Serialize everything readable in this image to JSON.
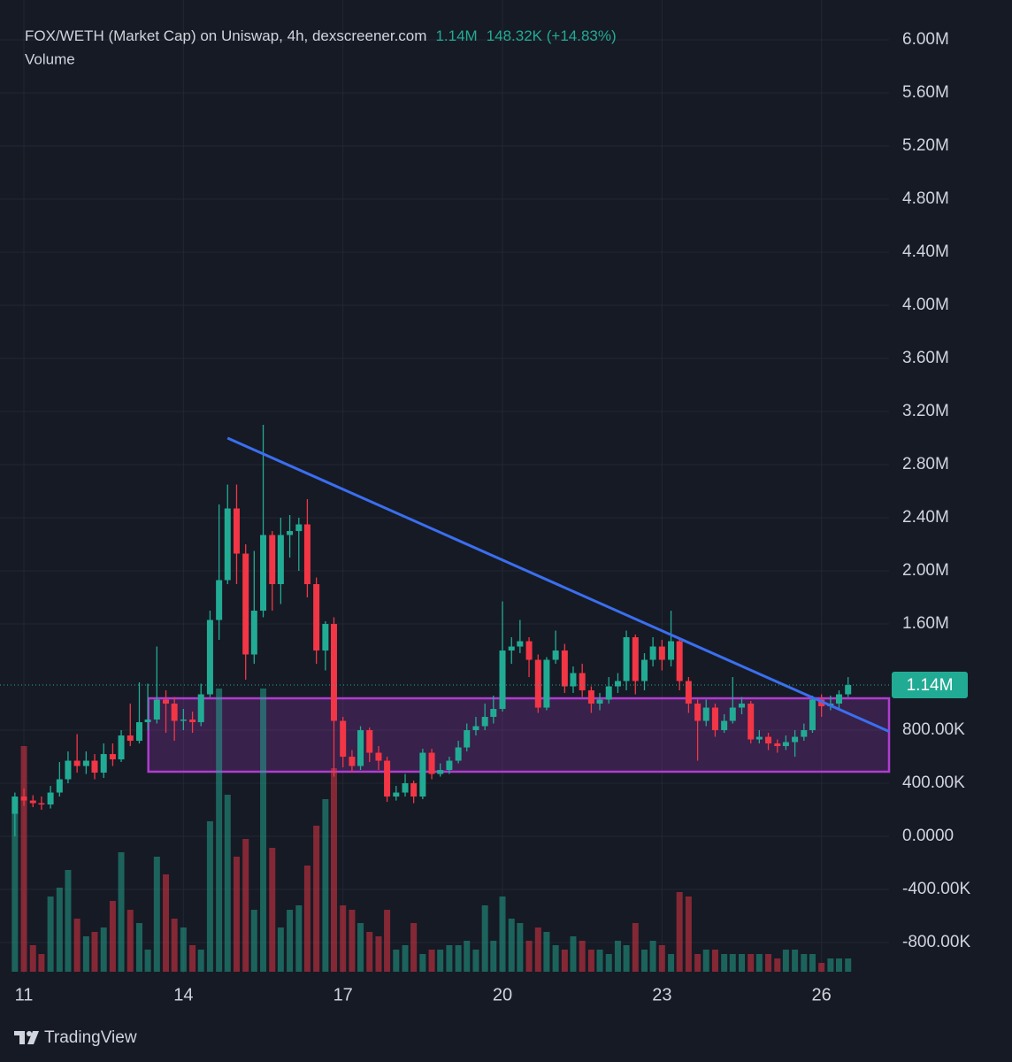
{
  "chart_data": {
    "type": "candlestick",
    "title": "FOX/WETH (Market Cap) on Uniswap, 4h, dexscreener.com",
    "header_value": "1.14M",
    "header_change": "148.32K (+14.83%)",
    "volume_label": "Volume",
    "x": [
      10.83,
      11,
      11.17,
      11.33,
      11.5,
      11.67,
      11.83,
      12,
      12.17,
      12.33,
      12.5,
      12.67,
      12.83,
      13,
      13.17,
      13.33,
      13.5,
      13.67,
      13.83,
      14,
      14.17,
      14.33,
      14.5,
      14.67,
      14.83,
      15,
      15.17,
      15.33,
      15.5,
      15.67,
      15.83,
      16,
      16.17,
      16.33,
      16.5,
      16.67,
      16.83,
      17,
      17.17,
      17.33,
      17.5,
      17.67,
      17.83,
      18,
      18.17,
      18.33,
      18.5,
      18.67,
      18.83,
      19,
      19.17,
      19.33,
      19.5,
      19.67,
      19.83,
      20,
      20.17,
      20.33,
      20.5,
      20.67,
      20.83,
      21,
      21.17,
      21.33,
      21.5,
      21.67,
      21.83,
      22,
      22.17,
      22.33,
      22.5,
      22.67,
      22.83,
      23,
      23.17,
      23.33,
      23.5,
      23.67,
      23.83,
      24,
      24.17,
      24.33,
      24.5,
      24.67,
      24.83,
      25,
      25.17,
      25.33,
      25.5,
      25.67,
      25.83,
      26,
      26.17,
      26.33,
      26.5
    ],
    "open": [
      170000,
      300000,
      270000,
      250000,
      240000,
      330000,
      430000,
      570000,
      530000,
      570000,
      480000,
      620000,
      580000,
      760000,
      720000,
      860000,
      880000,
      1030000,
      1000000,
      870000,
      880000,
      860000,
      1070000,
      1630000,
      1930000,
      2470000,
      2130000,
      1370000,
      1700000,
      2270000,
      1900000,
      2270000,
      2300000,
      2350000,
      1900000,
      1400000,
      1600000,
      870000,
      600000,
      530000,
      800000,
      630000,
      570000,
      300000,
      330000,
      400000,
      300000,
      630000,
      470000,
      500000,
      570000,
      670000,
      800000,
      830000,
      900000,
      960000,
      1400000,
      1430000,
      1470000,
      1330000,
      970000,
      1330000,
      1400000,
      1130000,
      1230000,
      1100000,
      1000000,
      1030000,
      1130000,
      1170000,
      1500000,
      1170000,
      1330000,
      1430000,
      1330000,
      1470000,
      1170000,
      1000000,
      870000,
      970000,
      800000,
      870000,
      970000,
      1000000,
      730000,
      750000,
      700000,
      680000,
      710000,
      750000,
      800000,
      1030000,
      980000,
      1000000,
      1070000
    ],
    "high": [
      330000,
      360000,
      310000,
      300000,
      380000,
      560000,
      640000,
      770000,
      640000,
      620000,
      700000,
      700000,
      800000,
      1000000,
      1160000,
      1150000,
      1430000,
      1100000,
      1050000,
      960000,
      940000,
      1150000,
      1700000,
      2500000,
      2650000,
      2650000,
      2200000,
      2150000,
      3100000,
      2300000,
      2400000,
      2420000,
      2400000,
      2540000,
      1950000,
      1620000,
      1650000,
      900000,
      650000,
      830000,
      820000,
      680000,
      600000,
      380000,
      470000,
      420000,
      660000,
      660000,
      550000,
      600000,
      720000,
      850000,
      900000,
      1000000,
      1060000,
      1770000,
      1500000,
      1630000,
      1500000,
      1370000,
      1350000,
      1550000,
      1450000,
      1280000,
      1300000,
      1130000,
      1080000,
      1200000,
      1230000,
      1550000,
      1520000,
      1380000,
      1500000,
      1480000,
      1700000,
      1500000,
      1200000,
      1030000,
      1030000,
      1000000,
      920000,
      1200000,
      1050000,
      1020000,
      800000,
      780000,
      730000,
      760000,
      800000,
      850000,
      1060000,
      1070000,
      1060000,
      1100000,
      1200000
    ],
    "low": [
      0,
      230000,
      220000,
      200000,
      210000,
      300000,
      400000,
      480000,
      470000,
      430000,
      440000,
      530000,
      560000,
      680000,
      700000,
      800000,
      850000,
      780000,
      720000,
      800000,
      780000,
      830000,
      1050000,
      1480000,
      1900000,
      1900000,
      1180000,
      1300000,
      1650000,
      1700000,
      1750000,
      2100000,
      2000000,
      1800000,
      1300000,
      1250000,
      450000,
      520000,
      480000,
      500000,
      560000,
      500000,
      260000,
      270000,
      300000,
      250000,
      280000,
      430000,
      450000,
      470000,
      550000,
      640000,
      760000,
      800000,
      850000,
      940000,
      1300000,
      1380000,
      1200000,
      930000,
      950000,
      1300000,
      1080000,
      1080000,
      1050000,
      930000,
      950000,
      1000000,
      1080000,
      1100000,
      1070000,
      1100000,
      1280000,
      1250000,
      1280000,
      1100000,
      930000,
      570000,
      830000,
      750000,
      780000,
      850000,
      920000,
      700000,
      700000,
      650000,
      630000,
      650000,
      600000,
      720000,
      780000,
      900000,
      950000,
      960000,
      1050000
    ],
    "close": [
      300000,
      270000,
      250000,
      240000,
      330000,
      430000,
      570000,
      530000,
      570000,
      480000,
      620000,
      580000,
      760000,
      720000,
      860000,
      880000,
      1030000,
      1000000,
      870000,
      880000,
      860000,
      1070000,
      1630000,
      1930000,
      2470000,
      2130000,
      1370000,
      1700000,
      2270000,
      1900000,
      2270000,
      2300000,
      2350000,
      1900000,
      1400000,
      1600000,
      870000,
      600000,
      530000,
      800000,
      630000,
      570000,
      300000,
      330000,
      400000,
      300000,
      630000,
      470000,
      500000,
      570000,
      670000,
      800000,
      830000,
      900000,
      960000,
      1400000,
      1430000,
      1470000,
      1330000,
      970000,
      1330000,
      1400000,
      1130000,
      1230000,
      1100000,
      1000000,
      1030000,
      1130000,
      1170000,
      1500000,
      1170000,
      1330000,
      1430000,
      1330000,
      1470000,
      1170000,
      1000000,
      870000,
      970000,
      800000,
      870000,
      970000,
      1000000,
      730000,
      750000,
      700000,
      680000,
      710000,
      750000,
      800000,
      1030000,
      980000,
      1000000,
      1070000,
      1140000
    ],
    "volume": [
      180,
      255,
      30,
      20,
      85,
      95,
      115,
      60,
      40,
      45,
      50,
      80,
      135,
      70,
      55,
      25,
      130,
      110,
      60,
      50,
      30,
      25,
      170,
      320,
      200,
      130,
      150,
      70,
      320,
      140,
      50,
      70,
      75,
      120,
      165,
      195,
      230,
      75,
      70,
      55,
      45,
      40,
      70,
      25,
      30,
      55,
      20,
      25,
      25,
      30,
      30,
      35,
      25,
      75,
      35,
      85,
      60,
      55,
      35,
      50,
      45,
      30,
      25,
      40,
      35,
      25,
      25,
      20,
      35,
      30,
      55,
      25,
      35,
      30,
      20,
      90,
      85,
      20,
      25,
      25,
      20,
      20,
      20,
      20,
      20,
      20,
      15,
      25,
      25,
      20,
      20,
      10,
      15,
      15,
      15
    ],
    "up_color": "#22ab94",
    "down_color": "#f23645",
    "xlim": [
      10.55,
      27.27
    ],
    "xticks": [
      11,
      14,
      17,
      20,
      23,
      26
    ],
    "ylim": [
      -1033000,
      6300000
    ],
    "yticks": [
      {
        "value": 6000000,
        "label": "6.00M"
      },
      {
        "value": 5600000,
        "label": "5.60M"
      },
      {
        "value": 5200000,
        "label": "5.20M"
      },
      {
        "value": 4800000,
        "label": "4.80M"
      },
      {
        "value": 4400000,
        "label": "4.40M"
      },
      {
        "value": 4000000,
        "label": "4.00M"
      },
      {
        "value": 3600000,
        "label": "3.60M"
      },
      {
        "value": 3200000,
        "label": "3.20M"
      },
      {
        "value": 2800000,
        "label": "2.80M"
      },
      {
        "value": 2400000,
        "label": "2.40M"
      },
      {
        "value": 2000000,
        "label": "2.00M"
      },
      {
        "value": 1600000,
        "label": "1.60M"
      },
      {
        "value": 800000,
        "label": "800.00K"
      },
      {
        "value": 400000,
        "label": "400.00K"
      },
      {
        "value": 0,
        "label": "0.0000"
      },
      {
        "value": -400000,
        "label": "-400.00K"
      },
      {
        "value": -800000,
        "label": "-800.00K"
      }
    ],
    "grid": true,
    "last_value": 1140000,
    "last_label": "1.14M",
    "trendline": {
      "x": [
        14.83,
        27.27
      ],
      "y": [
        3000000,
        790000
      ],
      "color": "#3a6ff0"
    },
    "zone": {
      "x": [
        13.34,
        27.27
      ],
      "y": [
        487000,
        1040000
      ],
      "color": "#b03cd0"
    }
  },
  "brand": "TradingView"
}
